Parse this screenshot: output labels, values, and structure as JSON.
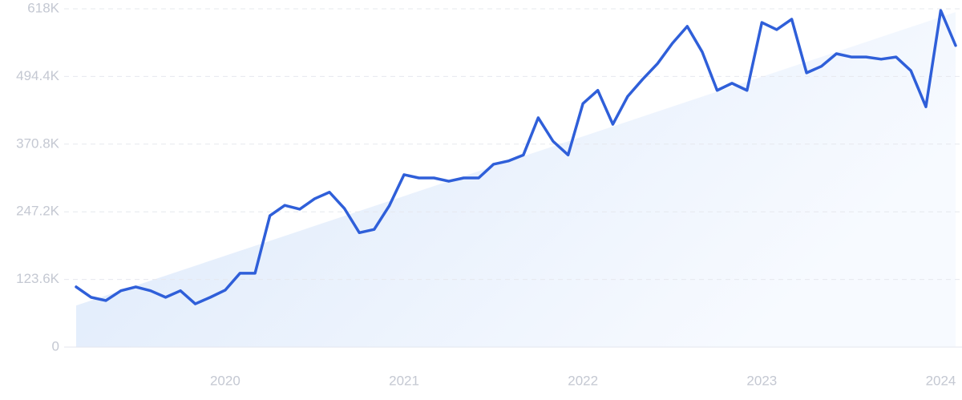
{
  "chart_data": {
    "type": "line",
    "x": [
      2019.167,
      2019.25,
      2019.333,
      2019.417,
      2019.5,
      2019.583,
      2019.667,
      2019.75,
      2019.833,
      2019.917,
      2020.0,
      2020.083,
      2020.167,
      2020.25,
      2020.333,
      2020.417,
      2020.5,
      2020.583,
      2020.667,
      2020.75,
      2020.833,
      2020.917,
      2021.0,
      2021.083,
      2021.167,
      2021.25,
      2021.333,
      2021.417,
      2021.5,
      2021.583,
      2021.667,
      2021.75,
      2021.833,
      2021.917,
      2022.0,
      2022.083,
      2022.167,
      2022.25,
      2022.333,
      2022.417,
      2022.5,
      2022.583,
      2022.667,
      2022.75,
      2022.833,
      2022.917,
      2023.0,
      2023.083,
      2023.167,
      2023.25,
      2023.333,
      2023.417,
      2023.5,
      2023.583,
      2023.667,
      2023.75,
      2023.833,
      2023.917,
      2024.0,
      2024.083
    ],
    "series": [
      {
        "color": "#2f5fd9",
        "values": [
          110000,
          91000,
          85000,
          103000,
          110000,
          103000,
          91000,
          103000,
          79000,
          91000,
          104000,
          135000,
          135000,
          240000,
          259000,
          252000,
          271000,
          283000,
          253000,
          209000,
          215000,
          258000,
          315000,
          309000,
          309000,
          303000,
          309000,
          309000,
          334000,
          340000,
          351000,
          419000,
          376000,
          351000,
          445000,
          469000,
          407000,
          458000,
          489000,
          518000,
          555000,
          586000,
          539000,
          469000,
          482000,
          469000,
          593000,
          580000,
          599000,
          501000,
          513000,
          536000,
          530000,
          530000,
          526000,
          530000,
          505000,
          439000,
          615000,
          551000
        ]
      }
    ],
    "trend": {
      "x": [
        2019.167,
        2024.083
      ],
      "values": [
        76000,
        612000
      ]
    },
    "xlim": [
      2019.167,
      2024.083
    ],
    "xticks": [
      2020,
      2021,
      2022,
      2023,
      2024
    ],
    "ylim": [
      0,
      618000
    ],
    "yticks": [
      0,
      {
        "value": 123600,
        "label": "123.6K"
      },
      {
        "value": 247200,
        "label": "247.2K"
      },
      {
        "value": 370800,
        "label": "370.8K"
      },
      {
        "value": 494400,
        "label": "494.4K"
      },
      {
        "value": 618000,
        "label": "618K"
      }
    ],
    "grid": true
  }
}
